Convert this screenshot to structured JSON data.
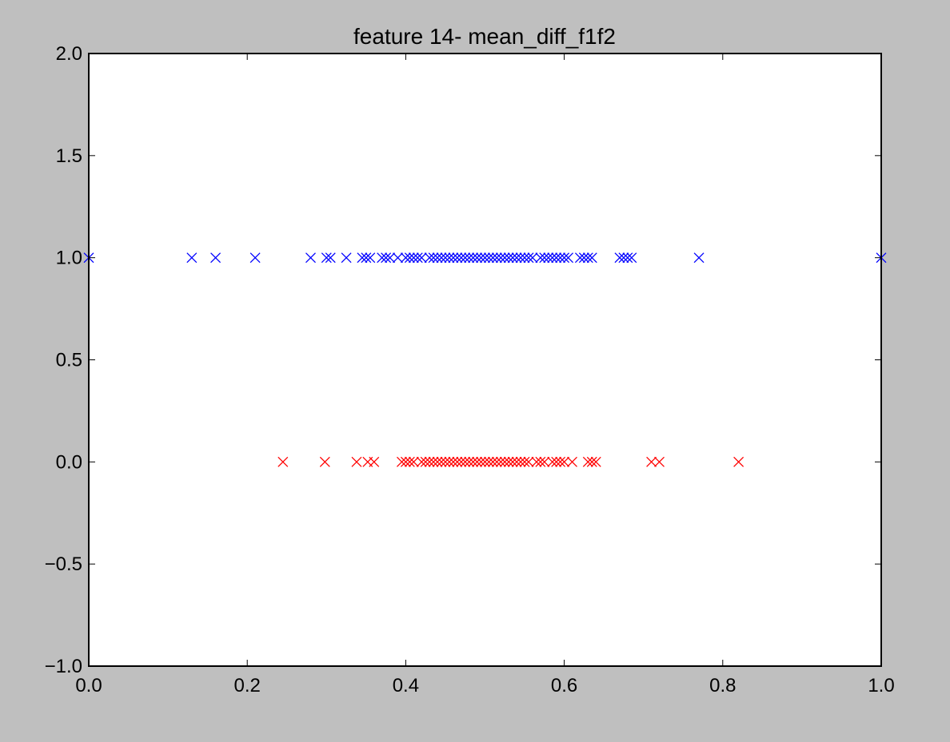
{
  "chart_data": {
    "type": "scatter",
    "title": "feature 14- mean_diff_f1f2",
    "xlabel": "",
    "ylabel": "",
    "xlim": [
      0.0,
      1.0
    ],
    "ylim": [
      -1.0,
      2.0
    ],
    "grid": false,
    "x_ticks": [
      "0.0",
      "0.2",
      "0.4",
      "0.6",
      "0.8",
      "1.0"
    ],
    "y_ticks": [
      "−1.0",
      "−0.5",
      "0.0",
      "0.5",
      "1.0",
      "1.5",
      "2.0"
    ],
    "marker": "x",
    "series": [
      {
        "color": "#0000ff",
        "y": 1.0,
        "x": [
          0.0,
          0.13,
          0.16,
          0.21,
          0.28,
          0.3,
          0.305,
          0.325,
          0.345,
          0.35,
          0.355,
          0.37,
          0.375,
          0.38,
          0.39,
          0.4,
          0.405,
          0.41,
          0.415,
          0.42,
          0.43,
          0.435,
          0.44,
          0.445,
          0.45,
          0.455,
          0.46,
          0.465,
          0.47,
          0.475,
          0.48,
          0.485,
          0.49,
          0.495,
          0.5,
          0.505,
          0.51,
          0.515,
          0.52,
          0.525,
          0.53,
          0.535,
          0.54,
          0.545,
          0.55,
          0.555,
          0.56,
          0.57,
          0.575,
          0.58,
          0.585,
          0.59,
          0.595,
          0.6,
          0.605,
          0.62,
          0.625,
          0.63,
          0.635,
          0.67,
          0.675,
          0.68,
          0.685,
          0.77,
          1.0
        ]
      },
      {
        "color": "#ff0000",
        "y": 0.0,
        "x": [
          0.245,
          0.298,
          0.338,
          0.352,
          0.36,
          0.395,
          0.4,
          0.405,
          0.41,
          0.42,
          0.425,
          0.43,
          0.435,
          0.44,
          0.445,
          0.45,
          0.455,
          0.46,
          0.465,
          0.47,
          0.475,
          0.48,
          0.485,
          0.49,
          0.495,
          0.5,
          0.505,
          0.51,
          0.515,
          0.52,
          0.525,
          0.53,
          0.535,
          0.54,
          0.545,
          0.55,
          0.555,
          0.565,
          0.57,
          0.575,
          0.585,
          0.59,
          0.595,
          0.6,
          0.61,
          0.63,
          0.635,
          0.64,
          0.71,
          0.72,
          0.82
        ]
      }
    ]
  }
}
